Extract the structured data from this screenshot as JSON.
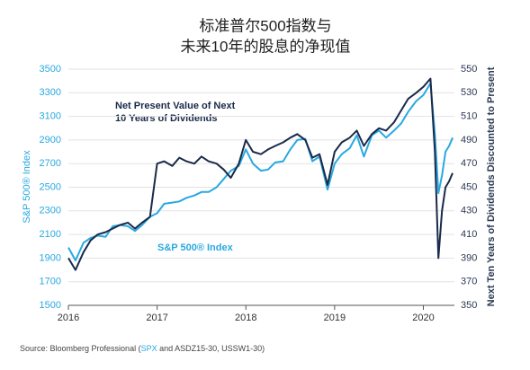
{
  "chart_data": {
    "type": "line",
    "title": [
      "标准普尔500指数与",
      "未来10年的股息的净现值"
    ],
    "y_label": "S&P 500® Index",
    "y2_label": "Next Ten Years of Dividends Discounted to Present",
    "annotations": [
      "Net Present Value of Next",
      "10 Years of Dividends",
      "S&P 500® Index"
    ],
    "source": [
      "Source: Bloomberg Professional (",
      "SPX",
      " and ASDZ15-30, USSW1-30)"
    ],
    "x": [
      2016.0,
      2016.08,
      2016.17,
      2016.25,
      2016.33,
      2016.42,
      2016.5,
      2016.58,
      2016.67,
      2016.75,
      2016.83,
      2016.92,
      2017.0,
      2017.08,
      2017.17,
      2017.25,
      2017.33,
      2017.42,
      2017.5,
      2017.58,
      2017.67,
      2017.75,
      2017.83,
      2017.92,
      2018.0,
      2018.08,
      2018.17,
      2018.25,
      2018.33,
      2018.42,
      2018.5,
      2018.58,
      2018.67,
      2018.75,
      2018.83,
      2018.92,
      2019.0,
      2019.08,
      2019.17,
      2019.25,
      2019.33,
      2019.42,
      2019.5,
      2019.58,
      2019.67,
      2019.75,
      2019.83,
      2019.92,
      2020.0,
      2020.08,
      2020.13,
      2020.17,
      2020.21,
      2020.25,
      2020.29,
      2020.33
    ],
    "series": [
      {
        "name": "S&P 500® Index",
        "color": "#29a8e0",
        "values": [
          1990,
          1880,
          2030,
          2070,
          2090,
          2080,
          2170,
          2180,
          2170,
          2130,
          2180,
          2250,
          2280,
          2360,
          2370,
          2380,
          2410,
          2430,
          2460,
          2460,
          2500,
          2570,
          2640,
          2680,
          2820,
          2700,
          2640,
          2650,
          2710,
          2720,
          2820,
          2900,
          2910,
          2720,
          2760,
          2480,
          2700,
          2780,
          2830,
          2940,
          2760,
          2940,
          2980,
          2920,
          2980,
          3040,
          3140,
          3230,
          3280,
          3380,
          2950,
          2450,
          2600,
          2800,
          2850,
          2920
        ]
      },
      {
        "name": "Net Present Value of Next 10 Years of Dividends",
        "color": "#1a2a4a",
        "axis": "y2",
        "values": [
          390,
          380,
          395,
          405,
          410,
          412,
          415,
          418,
          420,
          415,
          420,
          425,
          470,
          472,
          468,
          475,
          472,
          470,
          476,
          472,
          470,
          465,
          458,
          470,
          490,
          480,
          478,
          482,
          485,
          488,
          492,
          495,
          490,
          475,
          478,
          452,
          480,
          488,
          492,
          498,
          485,
          495,
          500,
          498,
          505,
          515,
          525,
          530,
          535,
          542,
          480,
          390,
          430,
          450,
          455,
          462
        ]
      }
    ],
    "xlim": [
      2016,
      2020.35
    ],
    "xticks": [
      2016,
      2017,
      2018,
      2019,
      2020
    ],
    "ylim": [
      1500,
      3500
    ],
    "yticks": [
      1500,
      1700,
      1900,
      2100,
      2300,
      2500,
      2700,
      2900,
      3100,
      3300,
      3500
    ],
    "y2lim": [
      350,
      550
    ],
    "y2ticks": [
      350,
      370,
      390,
      410,
      430,
      450,
      470,
      490,
      510,
      530,
      550
    ],
    "grid": true
  }
}
